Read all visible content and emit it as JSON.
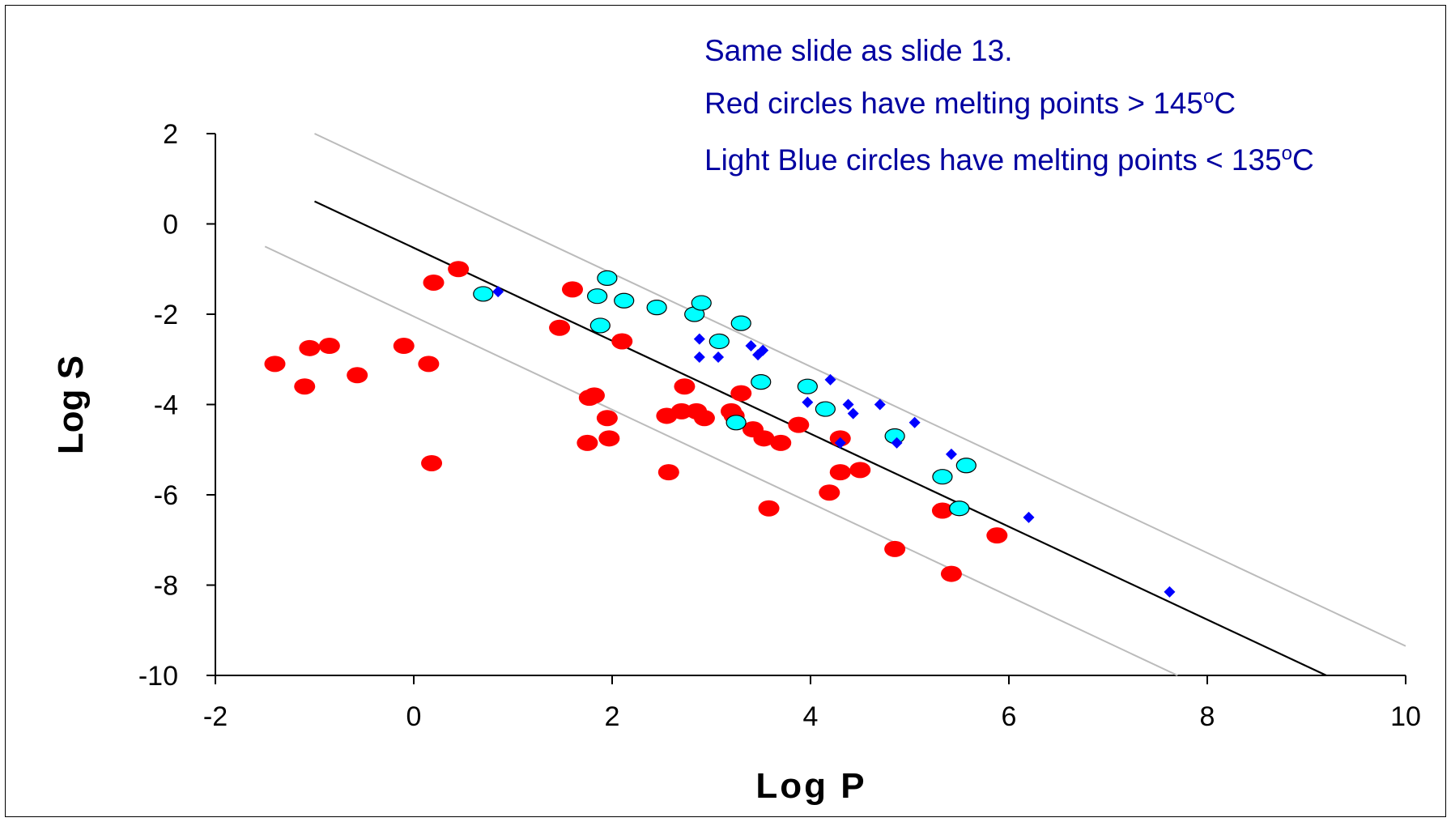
{
  "chart_data": {
    "type": "scatter",
    "title": "",
    "xlabel": "Log P",
    "ylabel": "Log S",
    "xlim": [
      -2,
      10
    ],
    "ylim": [
      -10,
      2
    ],
    "x_ticks": [
      "-2",
      "0",
      "2",
      "4",
      "6",
      "8",
      "10"
    ],
    "y_ticks": [
      "2",
      "0",
      "-2",
      "-4",
      "-6",
      "-8",
      "-10"
    ],
    "grid": false,
    "legend": "none",
    "annotations": [
      {
        "text": "Same slide as slide 13."
      },
      {
        "text": "Red circles have melting points > 145",
        "sup": "o",
        "suffix": "C"
      },
      {
        "text": "Light Blue circles have melting points < 135",
        "sup": "o",
        "suffix": "C"
      }
    ],
    "lines": [
      {
        "color": "#000000",
        "x": [
          -1.0,
          9.2
        ],
        "y": [
          0.5,
          -10.0
        ]
      },
      {
        "color": "#bbbbbb",
        "x": [
          -1.0,
          10.0
        ],
        "y": [
          2.0,
          -9.35
        ]
      },
      {
        "color": "#bbbbbb",
        "x": [
          -1.5,
          7.7
        ],
        "y": [
          -0.5,
          -10.0
        ]
      }
    ],
    "series": [
      {
        "color": "#ff0000",
        "marker": "filled-circle",
        "points": [
          [
            -1.4,
            -3.1
          ],
          [
            -1.1,
            -3.6
          ],
          [
            -1.05,
            -2.75
          ],
          [
            -0.85,
            -2.7
          ],
          [
            -0.57,
            -3.35
          ],
          [
            -0.1,
            -2.7
          ],
          [
            0.15,
            -3.1
          ],
          [
            0.2,
            -1.3
          ],
          [
            0.18,
            -5.3
          ],
          [
            0.45,
            -1.0
          ],
          [
            1.47,
            -2.3
          ],
          [
            1.6,
            -1.45
          ],
          [
            1.77,
            -3.85
          ],
          [
            1.82,
            -3.8
          ],
          [
            1.75,
            -4.85
          ],
          [
            1.95,
            -4.3
          ],
          [
            1.97,
            -4.75
          ],
          [
            2.1,
            -2.6
          ],
          [
            2.55,
            -4.25
          ],
          [
            2.57,
            -5.5
          ],
          [
            2.7,
            -4.15
          ],
          [
            2.73,
            -3.6
          ],
          [
            2.85,
            -4.15
          ],
          [
            2.93,
            -4.3
          ],
          [
            3.2,
            -4.15
          ],
          [
            3.23,
            -4.25
          ],
          [
            3.3,
            -3.75
          ],
          [
            3.42,
            -4.55
          ],
          [
            3.53,
            -4.75
          ],
          [
            3.7,
            -4.85
          ],
          [
            3.58,
            -6.3
          ],
          [
            3.88,
            -4.45
          ],
          [
            4.19,
            -5.95
          ],
          [
            4.3,
            -4.75
          ],
          [
            4.3,
            -5.5
          ],
          [
            4.5,
            -5.45
          ],
          [
            4.85,
            -7.2
          ],
          [
            5.33,
            -6.35
          ],
          [
            5.42,
            -7.75
          ],
          [
            5.88,
            -6.9
          ]
        ]
      },
      {
        "color": "#00ffff",
        "marker": "outlined-circle",
        "points": [
          [
            0.7,
            -1.55
          ],
          [
            1.95,
            -1.2
          ],
          [
            1.85,
            -1.6
          ],
          [
            1.88,
            -2.25
          ],
          [
            2.12,
            -1.7
          ],
          [
            2.45,
            -1.85
          ],
          [
            2.83,
            -2.0
          ],
          [
            2.9,
            -1.75
          ],
          [
            3.08,
            -2.6
          ],
          [
            3.3,
            -2.2
          ],
          [
            3.5,
            -3.5
          ],
          [
            3.25,
            -4.4
          ],
          [
            3.97,
            -3.6
          ],
          [
            4.15,
            -4.1
          ],
          [
            4.85,
            -4.7
          ],
          [
            5.33,
            -5.6
          ],
          [
            5.57,
            -5.35
          ],
          [
            5.5,
            -6.3
          ]
        ]
      },
      {
        "color": "#0000ff",
        "marker": "diamond",
        "points": [
          [
            0.85,
            -1.5
          ],
          [
            2.88,
            -2.55
          ],
          [
            2.88,
            -2.95
          ],
          [
            3.07,
            -2.95
          ],
          [
            3.4,
            -2.7
          ],
          [
            3.47,
            -2.9
          ],
          [
            3.52,
            -2.8
          ],
          [
            4.2,
            -3.45
          ],
          [
            3.97,
            -3.95
          ],
          [
            4.38,
            -4.0
          ],
          [
            4.43,
            -4.2
          ],
          [
            4.7,
            -4.0
          ],
          [
            4.3,
            -4.85
          ],
          [
            4.87,
            -4.85
          ],
          [
            5.05,
            -4.4
          ],
          [
            5.42,
            -5.1
          ],
          [
            6.2,
            -6.5
          ],
          [
            7.62,
            -8.15
          ]
        ]
      }
    ]
  }
}
